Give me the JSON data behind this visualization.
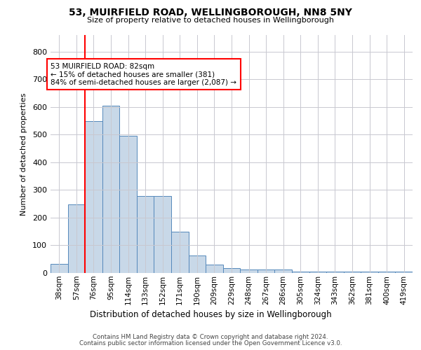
{
  "title1": "53, MUIRFIELD ROAD, WELLINGBOROUGH, NN8 5NY",
  "title2": "Size of property relative to detached houses in Wellingborough",
  "xlabel": "Distribution of detached houses by size in Wellingborough",
  "ylabel": "Number of detached properties",
  "categories": [
    "38sqm",
    "57sqm",
    "76sqm",
    "95sqm",
    "114sqm",
    "133sqm",
    "152sqm",
    "171sqm",
    "190sqm",
    "209sqm",
    "229sqm",
    "248sqm",
    "267sqm",
    "286sqm",
    "305sqm",
    "324sqm",
    "343sqm",
    "362sqm",
    "381sqm",
    "400sqm",
    "419sqm"
  ],
  "values": [
    32,
    248,
    550,
    605,
    495,
    278,
    278,
    148,
    63,
    30,
    18,
    13,
    12,
    12,
    6,
    5,
    5,
    5,
    4,
    5,
    5
  ],
  "bar_color": "#c8d8e8",
  "bar_edge_color": "#5588bb",
  "annotation_text": "53 MUIRFIELD ROAD: 82sqm\n← 15% of detached houses are smaller (381)\n84% of semi-detached houses are larger (2,087) →",
  "annotation_box_color": "white",
  "annotation_box_edge_color": "red",
  "ylim": [
    0,
    860
  ],
  "yticks": [
    0,
    100,
    200,
    300,
    400,
    500,
    600,
    700,
    800
  ],
  "grid_color": "#c8c8d0",
  "background_color": "white",
  "footer1": "Contains HM Land Registry data © Crown copyright and database right 2024.",
  "footer2": "Contains public sector information licensed under the Open Government Licence v3.0."
}
